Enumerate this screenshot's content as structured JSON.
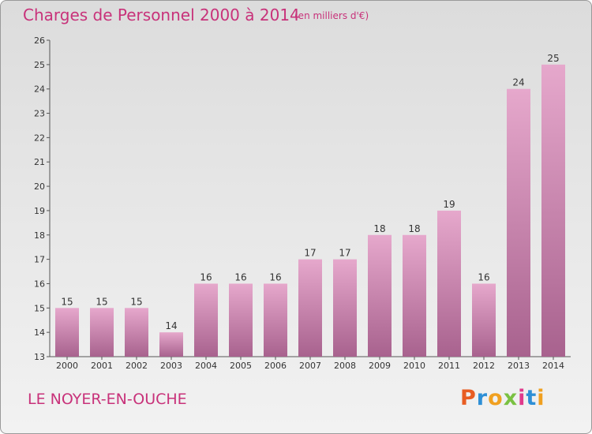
{
  "title": "Charges de Personnel 2000 à 2014",
  "subtitle": "(en milliers d'€)",
  "place": "LE NOYER-EN-OUCHE",
  "logo": {
    "letters": [
      "P",
      "r",
      "o",
      "x",
      "i",
      "t",
      "i"
    ],
    "colors": [
      "#e85d23",
      "#2e8fd6",
      "#f0a020",
      "#7ac142",
      "#e03a8c",
      "#2e8fd6",
      "#f0a020"
    ]
  },
  "colors": {
    "accent": "#c8327a",
    "bar_top": "#e6a8cc",
    "bar_bottom": "#a8628e",
    "axis": "#555555"
  },
  "chart_data": {
    "type": "bar",
    "categories": [
      "2000",
      "2001",
      "2002",
      "2003",
      "2004",
      "2005",
      "2006",
      "2007",
      "2008",
      "2009",
      "2010",
      "2011",
      "2012",
      "2013",
      "2014"
    ],
    "values": [
      15,
      15,
      15,
      14,
      16,
      16,
      16,
      17,
      17,
      18,
      18,
      19,
      16,
      24,
      25
    ],
    "ylim": [
      13,
      26
    ],
    "yticks": [
      13,
      14,
      15,
      16,
      17,
      18,
      19,
      20,
      21,
      22,
      23,
      24,
      25,
      26
    ],
    "xlabel": "",
    "ylabel": "",
    "data_labels": true,
    "grid": false
  }
}
